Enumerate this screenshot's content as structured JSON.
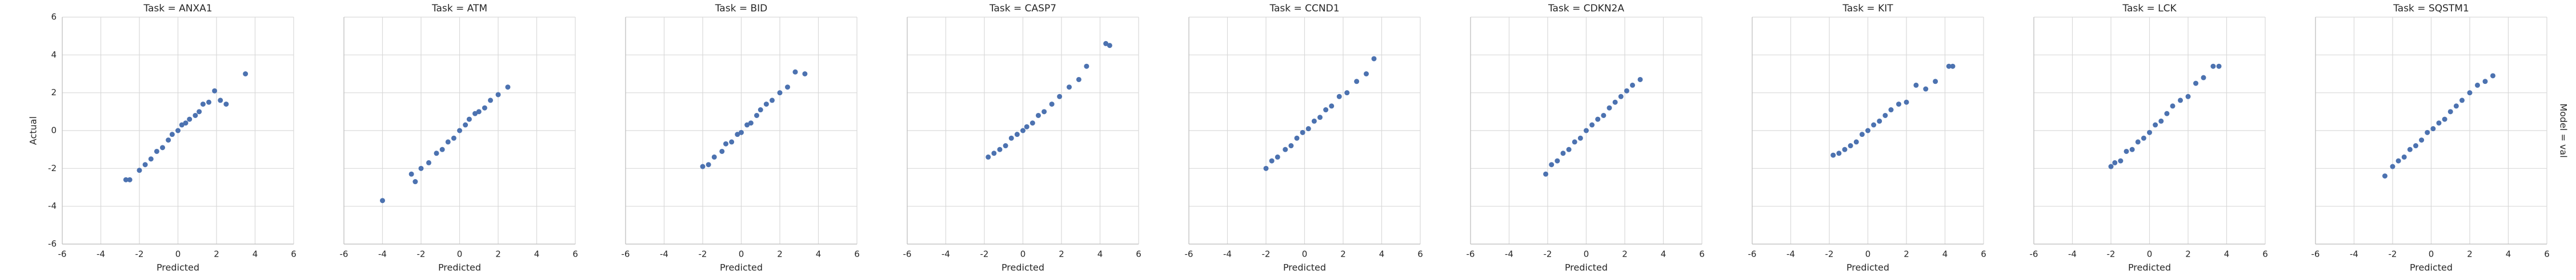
{
  "chart_data": [
    {
      "type": "scatter",
      "title": "Task = ANXA1",
      "xlabel": "Predicted",
      "ylabel": "Actual",
      "color": "#4c72b0",
      "grid": true,
      "xlim": [
        -6,
        6
      ],
      "ylim": [
        -6,
        6
      ],
      "xticks": [
        -6,
        -4,
        -2,
        0,
        2,
        4,
        6
      ],
      "yticks": [
        -6,
        -4,
        -2,
        0,
        2,
        4,
        6
      ],
      "x": [
        -2.7,
        -2.5,
        -2.0,
        -1.7,
        -1.4,
        -1.1,
        -0.8,
        -0.5,
        -0.3,
        0,
        0.2,
        0.4,
        0.6,
        0.9,
        1.1,
        1.3,
        1.6,
        1.9,
        2.2,
        2.5,
        3.5
      ],
      "y": [
        -2.6,
        -2.6,
        -2.1,
        -1.8,
        -1.5,
        -1.1,
        -0.9,
        -0.5,
        -0.2,
        0.0,
        0.3,
        0.4,
        0.6,
        0.8,
        1.0,
        1.4,
        1.5,
        2.1,
        1.6,
        1.4,
        3.0
      ]
    },
    {
      "type": "scatter",
      "title": "Task = ATM",
      "xlabel": "Predicted",
      "color": "#4c72b0",
      "grid": true,
      "xlim": [
        -6,
        6
      ],
      "ylim": [
        -6,
        6
      ],
      "xticks": [
        -6,
        -4,
        -2,
        0,
        2,
        4,
        6
      ],
      "yticks": [
        -6,
        -4,
        -2,
        0,
        2,
        4,
        6
      ],
      "x": [
        -4.0,
        -2.5,
        -2.3,
        -2.0,
        -1.6,
        -1.2,
        -0.9,
        -0.6,
        -0.3,
        0,
        0.3,
        0.5,
        0.8,
        1.0,
        1.3,
        1.6,
        2.0,
        2.5
      ],
      "y": [
        -3.7,
        -2.3,
        -2.7,
        -2.0,
        -1.7,
        -1.2,
        -1.0,
        -0.6,
        -0.4,
        0.0,
        0.3,
        0.6,
        0.9,
        1.0,
        1.2,
        1.6,
        1.9,
        2.3
      ]
    },
    {
      "type": "scatter",
      "title": "Task = BID",
      "xlabel": "Predicted",
      "color": "#4c72b0",
      "grid": true,
      "xlim": [
        -6,
        6
      ],
      "ylim": [
        -6,
        6
      ],
      "xticks": [
        -6,
        -4,
        -2,
        0,
        2,
        4,
        6
      ],
      "yticks": [
        -6,
        -4,
        -2,
        0,
        2,
        4,
        6
      ],
      "x": [
        -2.0,
        -1.7,
        -1.4,
        -1.0,
        -0.8,
        -0.5,
        -0.2,
        0,
        0.3,
        0.5,
        0.8,
        1.0,
        1.3,
        1.6,
        2.0,
        2.4,
        2.8,
        3.3
      ],
      "y": [
        -1.9,
        -1.8,
        -1.4,
        -1.1,
        -0.7,
        -0.6,
        -0.2,
        -0.1,
        0.3,
        0.4,
        0.8,
        1.1,
        1.4,
        1.6,
        2.0,
        2.3,
        3.1,
        3.0
      ]
    },
    {
      "type": "scatter",
      "title": "Task = CASP7",
      "xlabel": "Predicted",
      "color": "#4c72b0",
      "grid": true,
      "xlim": [
        -6,
        6
      ],
      "ylim": [
        -6,
        6
      ],
      "xticks": [
        -6,
        -4,
        -2,
        0,
        2,
        4,
        6
      ],
      "yticks": [
        -6,
        -4,
        -2,
        0,
        2,
        4,
        6
      ],
      "x": [
        -1.8,
        -1.5,
        -1.2,
        -0.9,
        -0.6,
        -0.3,
        0,
        0.2,
        0.5,
        0.8,
        1.1,
        1.5,
        1.9,
        2.4,
        2.9,
        3.3,
        4.3,
        4.5
      ],
      "y": [
        -1.4,
        -1.2,
        -1.0,
        -0.8,
        -0.4,
        -0.2,
        0,
        0.2,
        0.4,
        0.8,
        1.0,
        1.4,
        1.8,
        2.3,
        2.7,
        3.4,
        4.6,
        4.5
      ]
    },
    {
      "type": "scatter",
      "title": "Task = CCND1",
      "xlabel": "Predicted",
      "color": "#4c72b0",
      "grid": true,
      "xlim": [
        -6,
        6
      ],
      "ylim": [
        -6,
        6
      ],
      "xticks": [
        -6,
        -4,
        -2,
        0,
        2,
        4,
        6
      ],
      "yticks": [
        -6,
        -4,
        -2,
        0,
        2,
        4,
        6
      ],
      "x": [
        -2.0,
        -1.7,
        -1.4,
        -1.0,
        -0.7,
        -0.4,
        -0.1,
        0.2,
        0.5,
        0.8,
        1.1,
        1.4,
        1.8,
        2.2,
        2.7,
        3.2,
        3.6
      ],
      "y": [
        -2.0,
        -1.6,
        -1.4,
        -1.0,
        -0.8,
        -0.4,
        -0.1,
        0.1,
        0.5,
        0.7,
        1.1,
        1.3,
        1.8,
        2.0,
        2.6,
        3.0,
        3.8
      ]
    },
    {
      "type": "scatter",
      "title": "Task = CDKN2A",
      "xlabel": "Predicted",
      "color": "#4c72b0",
      "grid": true,
      "xlim": [
        -6,
        6
      ],
      "ylim": [
        -6,
        6
      ],
      "xticks": [
        -6,
        -4,
        -2,
        0,
        2,
        4,
        6
      ],
      "yticks": [
        -6,
        -4,
        -2,
        0,
        2,
        4,
        6
      ],
      "x": [
        -2.1,
        -1.8,
        -1.5,
        -1.2,
        -0.9,
        -0.6,
        -0.3,
        0,
        0.3,
        0.6,
        0.9,
        1.2,
        1.5,
        1.8,
        2.1,
        2.4,
        2.8
      ],
      "y": [
        -2.3,
        -1.8,
        -1.6,
        -1.2,
        -1.0,
        -0.6,
        -0.4,
        0,
        0.3,
        0.6,
        0.8,
        1.2,
        1.5,
        1.8,
        2.1,
        2.4,
        2.7
      ]
    },
    {
      "type": "scatter",
      "title": "Task = KIT",
      "xlabel": "Predicted",
      "color": "#4c72b0",
      "grid": true,
      "xlim": [
        -6,
        6
      ],
      "ylim": [
        -6,
        6
      ],
      "xticks": [
        -6,
        -4,
        -2,
        0,
        2,
        4,
        6
      ],
      "yticks": [
        -6,
        -4,
        -2,
        0,
        2,
        4,
        6
      ],
      "x": [
        -1.8,
        -1.5,
        -1.2,
        -0.9,
        -0.6,
        -0.3,
        0,
        0.3,
        0.6,
        0.9,
        1.2,
        1.6,
        2.0,
        2.5,
        3.0,
        3.5,
        4.2,
        4.4
      ],
      "y": [
        -1.3,
        -1.2,
        -1.0,
        -0.8,
        -0.6,
        -0.2,
        0,
        0.3,
        0.5,
        0.8,
        1.1,
        1.4,
        1.5,
        2.4,
        2.2,
        2.6,
        3.4,
        3.4
      ]
    },
    {
      "type": "scatter",
      "title": "Task = LCK",
      "xlabel": "Predicted",
      "color": "#4c72b0",
      "grid": true,
      "xlim": [
        -6,
        6
      ],
      "ylim": [
        -6,
        6
      ],
      "xticks": [
        -6,
        -4,
        -2,
        0,
        2,
        4,
        6
      ],
      "yticks": [
        -6,
        -4,
        -2,
        0,
        2,
        4,
        6
      ],
      "x": [
        -2.0,
        -1.8,
        -1.5,
        -1.2,
        -0.9,
        -0.6,
        -0.3,
        0,
        0.3,
        0.6,
        0.9,
        1.2,
        1.6,
        2.0,
        2.4,
        2.8,
        3.3,
        3.6
      ],
      "y": [
        -1.9,
        -1.7,
        -1.6,
        -1.1,
        -1.0,
        -0.6,
        -0.4,
        -0.1,
        0.3,
        0.5,
        0.9,
        1.3,
        1.6,
        1.8,
        2.5,
        2.8,
        3.4,
        3.4
      ]
    },
    {
      "type": "scatter",
      "title": "Task = SQSTM1",
      "xlabel": "Predicted",
      "row_label": "Model = val",
      "color": "#4c72b0",
      "grid": true,
      "xlim": [
        -6,
        6
      ],
      "ylim": [
        -6,
        6
      ],
      "xticks": [
        -6,
        -4,
        -2,
        0,
        2,
        4,
        6
      ],
      "yticks": [
        -6,
        -4,
        -2,
        0,
        2,
        4,
        6
      ],
      "x": [
        -2.4,
        -2.0,
        -1.7,
        -1.4,
        -1.1,
        -0.8,
        -0.5,
        -0.2,
        0.1,
        0.4,
        0.7,
        1.0,
        1.3,
        1.6,
        2.0,
        2.4,
        2.8,
        3.2
      ],
      "y": [
        -2.4,
        -1.9,
        -1.6,
        -1.4,
        -1.0,
        -0.8,
        -0.5,
        -0.1,
        0.1,
        0.4,
        0.6,
        1.0,
        1.3,
        1.6,
        2.0,
        2.4,
        2.6,
        2.9
      ]
    }
  ]
}
